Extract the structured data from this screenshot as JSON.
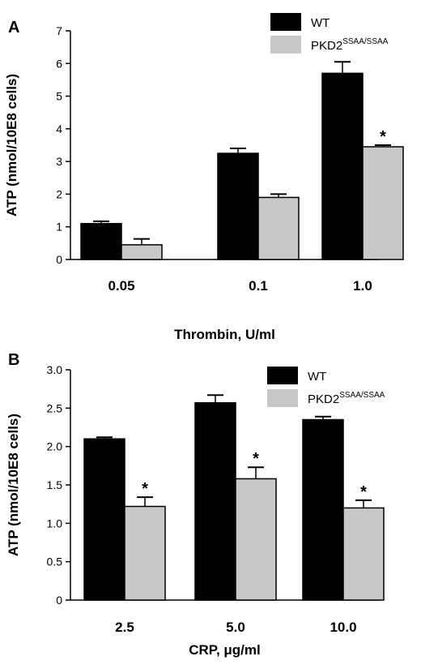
{
  "chart_data": [
    {
      "panel": "A",
      "type": "bar",
      "xlabel": "Thrombin, U/ml",
      "ylabel": "ATP (nmol/10E8 cells)",
      "ylim": [
        0,
        7
      ],
      "yticks": [
        "0",
        "1",
        "2",
        "3",
        "4",
        "5",
        "6",
        "7"
      ],
      "categories": [
        "0.05",
        "0.1",
        "1.0"
      ],
      "legend_placement": "top-right",
      "series": [
        {
          "name": "WT",
          "sup": "",
          "color": "#000000",
          "values": [
            1.1,
            3.25,
            5.7
          ],
          "errors": [
            0.07,
            0.15,
            0.35
          ]
        },
        {
          "name": "PKD2",
          "sup": "SSAA/SSAA",
          "color": "#c8c8c8",
          "values": [
            0.45,
            1.9,
            3.45
          ],
          "errors": [
            0.18,
            0.1,
            0.05
          ]
        }
      ],
      "annotations": [
        {
          "series": 1,
          "category": 2,
          "text": "*"
        }
      ]
    },
    {
      "panel": "B",
      "type": "bar",
      "xlabel": "CRP, μg/ml",
      "ylabel": "ATP (nmol/10E8 cells)",
      "ylim": [
        0,
        3
      ],
      "yticks": [
        "0",
        "0.5",
        "1.0",
        "1.5",
        "2.0",
        "2.5",
        "3.0"
      ],
      "categories": [
        "2.5",
        "5.0",
        "10.0"
      ],
      "legend_placement": "top-right",
      "series": [
        {
          "name": "WT",
          "sup": "",
          "color": "#000000",
          "values": [
            2.1,
            2.57,
            2.35
          ],
          "errors": [
            0.02,
            0.1,
            0.04
          ]
        },
        {
          "name": "PKD2",
          "sup": "SSAA/SSAA",
          "color": "#c8c8c8",
          "values": [
            1.22,
            1.58,
            1.2
          ],
          "errors": [
            0.12,
            0.15,
            0.1
          ]
        }
      ],
      "annotations": [
        {
          "series": 1,
          "category": 0,
          "text": "*"
        },
        {
          "series": 1,
          "category": 1,
          "text": "*"
        },
        {
          "series": 1,
          "category": 2,
          "text": "*"
        }
      ]
    }
  ]
}
